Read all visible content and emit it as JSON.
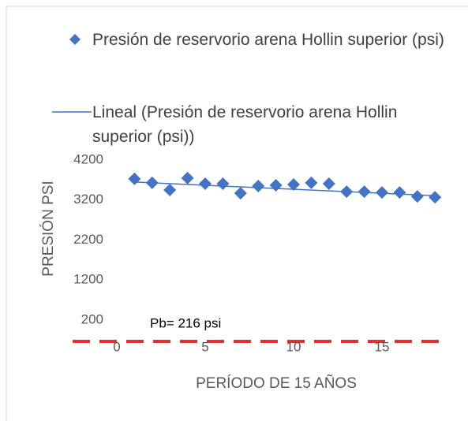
{
  "chart_data": {
    "type": "scatter",
    "xlabel": "PERÍODO DE 15 AÑOS",
    "ylabel": "PRESIÓN PSI",
    "annotation": "Pb= 216 psi",
    "xlim": [
      0,
      19
    ],
    "xticks": [
      0,
      5,
      10,
      15
    ],
    "ylim": [
      -500,
      4200
    ],
    "yticks": [
      200,
      1200,
      2200,
      3200,
      4200
    ],
    "series": [
      {
        "name": "Presión de reservorio arena Hollin superior (psi)",
        "color": "#4472c4",
        "marker": "diamond",
        "x": [
          1,
          2,
          3,
          4,
          5,
          6,
          7,
          8,
          9,
          10,
          11,
          12,
          13,
          14,
          15,
          16,
          17,
          18
        ],
        "values": [
          3730,
          3630,
          3450,
          3750,
          3610,
          3610,
          3370,
          3550,
          3570,
          3590,
          3630,
          3610,
          3410,
          3410,
          3390,
          3390,
          3290,
          3270
        ]
      },
      {
        "name": "Lineal (Presión de reservorio arena Hollin superior (psi))",
        "color": "#4472c4",
        "marker": "line",
        "x": [
          1,
          18
        ],
        "values": [
          3650,
          3310
        ]
      }
    ]
  }
}
